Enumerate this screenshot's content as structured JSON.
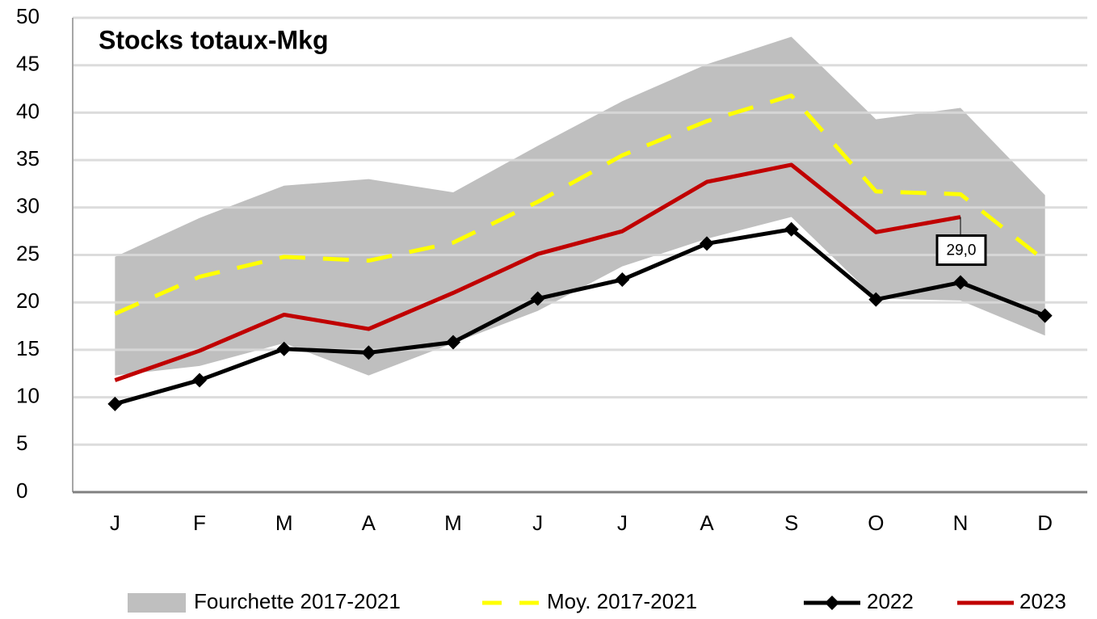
{
  "chart_data": {
    "type": "line",
    "title": "Stocks totaux-Mkg",
    "categories": [
      "J",
      "F",
      "M",
      "A",
      "M",
      "J",
      "J",
      "A",
      "S",
      "O",
      "N",
      "D"
    ],
    "band": {
      "name": "Fourchette 2017-2021",
      "color": "#bfbfbf",
      "low": [
        12.3,
        13.3,
        15.7,
        12.3,
        15.7,
        19.1,
        23.8,
        26.7,
        29.0,
        20.4,
        20.2,
        16.5
      ],
      "high": [
        24.8,
        28.9,
        32.3,
        33.0,
        31.6,
        36.5,
        41.2,
        45.1,
        48.0,
        39.3,
        40.5,
        31.3
      ]
    },
    "series": [
      {
        "name": "Moy. 2017-2021",
        "color": "#ffff00",
        "dashed": true,
        "values": [
          18.8,
          22.7,
          24.8,
          24.4,
          26.3,
          30.6,
          35.5,
          39.1,
          41.8,
          31.7,
          31.4,
          24.4
        ]
      },
      {
        "name": "2022",
        "color": "#000000",
        "marker": "diamond",
        "values": [
          9.3,
          11.8,
          15.1,
          14.7,
          15.8,
          20.4,
          22.4,
          26.2,
          27.7,
          20.3,
          22.1,
          18.6
        ]
      },
      {
        "name": "2023",
        "color": "#c00000",
        "values": [
          11.8,
          14.9,
          18.7,
          17.2,
          21.0,
          25.1,
          27.5,
          32.7,
          34.5,
          27.4,
          29.0,
          null
        ],
        "value_labels": [
          null,
          null,
          null,
          null,
          null,
          null,
          null,
          null,
          null,
          null,
          "29,0",
          null
        ]
      }
    ],
    "ylim": [
      0,
      50
    ],
    "yticks": [
      0,
      5,
      10,
      15,
      20,
      25,
      30,
      35,
      40,
      45,
      50
    ],
    "grid": true
  }
}
